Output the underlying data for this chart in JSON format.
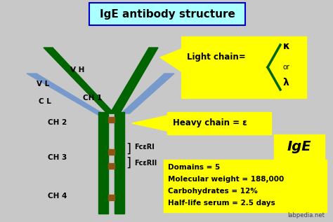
{
  "title": "IgE antibody structure",
  "bg_color": "#c8c8c8",
  "title_bg": "#aaffff",
  "yellow_bg": "#ffff00",
  "green_color": "#006400",
  "blue_color": "#7799cc",
  "brown_color": "#8B5513",
  "label_VH": "V H",
  "label_VL": "V L",
  "label_CH1": "CH 1",
  "label_CL": "C L",
  "label_CH2": "CH 2",
  "label_CH3": "CH 3",
  "label_CH4": "CH 4",
  "label_FcRI": "FcεRI",
  "label_FcRII": "FcεRII",
  "light_chain_text": "Light chain=",
  "heavy_chain_text": "Heavy chain = ε",
  "ige_label": "IgE",
  "info_line1": "Domains = 5",
  "info_line2": "Molecular weight = 188,000",
  "info_line3": "Carbohydrates = 12%",
  "info_line4": "Half-life serum = 2.5 days",
  "watermark": "labpedia.net",
  "kappa": "κ",
  "or_text": "or",
  "lambda": "λ",
  "title_border": "#0000cc"
}
